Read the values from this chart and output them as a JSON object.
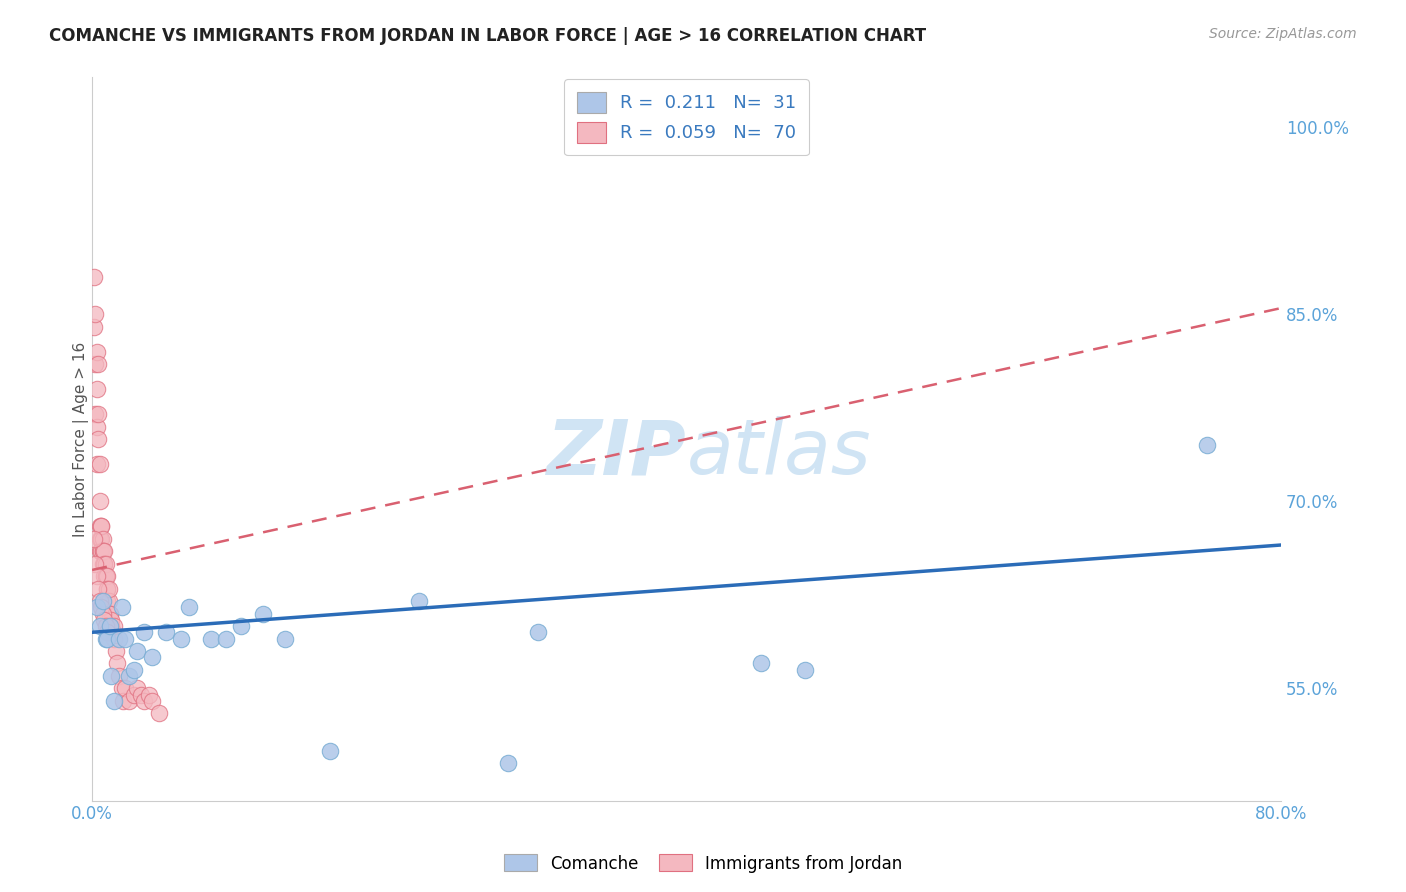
{
  "title": "COMANCHE VS IMMIGRANTS FROM JORDAN IN LABOR FORCE | AGE > 16 CORRELATION CHART",
  "source": "Source: ZipAtlas.com",
  "ylabel": "In Labor Force | Age > 16",
  "xlim": [
    0.0,
    0.8
  ],
  "ylim": [
    0.46,
    1.04
  ],
  "yticks": [
    0.55,
    0.7,
    0.85,
    1.0
  ],
  "ytick_labels": [
    "55.0%",
    "70.0%",
    "85.0%",
    "100.0%"
  ],
  "xticks": [
    0.0,
    0.8
  ],
  "xtick_labels": [
    "0.0%",
    "80.0%"
  ],
  "comanche_R": 0.211,
  "comanche_N": 31,
  "jordan_R": 0.059,
  "jordan_N": 70,
  "comanche_color": "#aec6e8",
  "comanche_edge_color": "#7aadd4",
  "comanche_line_color": "#2b6cb8",
  "jordan_color": "#f4b8c0",
  "jordan_edge_color": "#e07080",
  "jordan_line_color": "#d96070",
  "background_color": "#ffffff",
  "grid_color": "#e0e0e0",
  "watermark_color": "#d0e4f4",
  "comanche_x": [
    0.003,
    0.005,
    0.007,
    0.009,
    0.01,
    0.012,
    0.013,
    0.015,
    0.018,
    0.02,
    0.022,
    0.025,
    0.028,
    0.03,
    0.035,
    0.04,
    0.05,
    0.06,
    0.065,
    0.08,
    0.09,
    0.1,
    0.115,
    0.13,
    0.16,
    0.22,
    0.28,
    0.3,
    0.45,
    0.48,
    0.75
  ],
  "comanche_y": [
    0.615,
    0.6,
    0.62,
    0.59,
    0.59,
    0.6,
    0.56,
    0.54,
    0.59,
    0.615,
    0.59,
    0.56,
    0.565,
    0.58,
    0.595,
    0.575,
    0.595,
    0.59,
    0.615,
    0.59,
    0.59,
    0.6,
    0.61,
    0.59,
    0.5,
    0.62,
    0.49,
    0.595,
    0.57,
    0.565,
    0.745
  ],
  "jordan_x": [
    0.001,
    0.001,
    0.002,
    0.002,
    0.002,
    0.003,
    0.003,
    0.003,
    0.003,
    0.004,
    0.004,
    0.004,
    0.005,
    0.005,
    0.005,
    0.005,
    0.005,
    0.006,
    0.006,
    0.006,
    0.006,
    0.007,
    0.007,
    0.007,
    0.007,
    0.008,
    0.008,
    0.008,
    0.008,
    0.009,
    0.009,
    0.009,
    0.01,
    0.01,
    0.01,
    0.01,
    0.011,
    0.011,
    0.012,
    0.012,
    0.012,
    0.013,
    0.013,
    0.014,
    0.015,
    0.015,
    0.016,
    0.017,
    0.018,
    0.02,
    0.021,
    0.022,
    0.025,
    0.028,
    0.03,
    0.033,
    0.035,
    0.038,
    0.04,
    0.045,
    0.001,
    0.002,
    0.003,
    0.004,
    0.005,
    0.006,
    0.007,
    0.008,
    0.009,
    0.01
  ],
  "jordan_y": [
    0.88,
    0.84,
    0.85,
    0.81,
    0.77,
    0.82,
    0.79,
    0.76,
    0.73,
    0.75,
    0.81,
    0.77,
    0.73,
    0.7,
    0.67,
    0.66,
    0.68,
    0.67,
    0.68,
    0.66,
    0.68,
    0.67,
    0.66,
    0.65,
    0.66,
    0.65,
    0.66,
    0.64,
    0.65,
    0.64,
    0.65,
    0.64,
    0.63,
    0.64,
    0.62,
    0.63,
    0.62,
    0.63,
    0.61,
    0.6,
    0.61,
    0.6,
    0.605,
    0.595,
    0.59,
    0.6,
    0.58,
    0.57,
    0.56,
    0.55,
    0.54,
    0.55,
    0.54,
    0.545,
    0.55,
    0.545,
    0.54,
    0.545,
    0.54,
    0.53,
    0.67,
    0.65,
    0.64,
    0.63,
    0.62,
    0.615,
    0.61,
    0.605,
    0.6,
    0.595
  ],
  "blue_line_x0": 0.0,
  "blue_line_y0": 0.595,
  "blue_line_x1": 0.8,
  "blue_line_y1": 0.665,
  "pink_line_x0": 0.0,
  "pink_line_y0": 0.645,
  "pink_line_x1": 0.8,
  "pink_line_y1": 0.855
}
